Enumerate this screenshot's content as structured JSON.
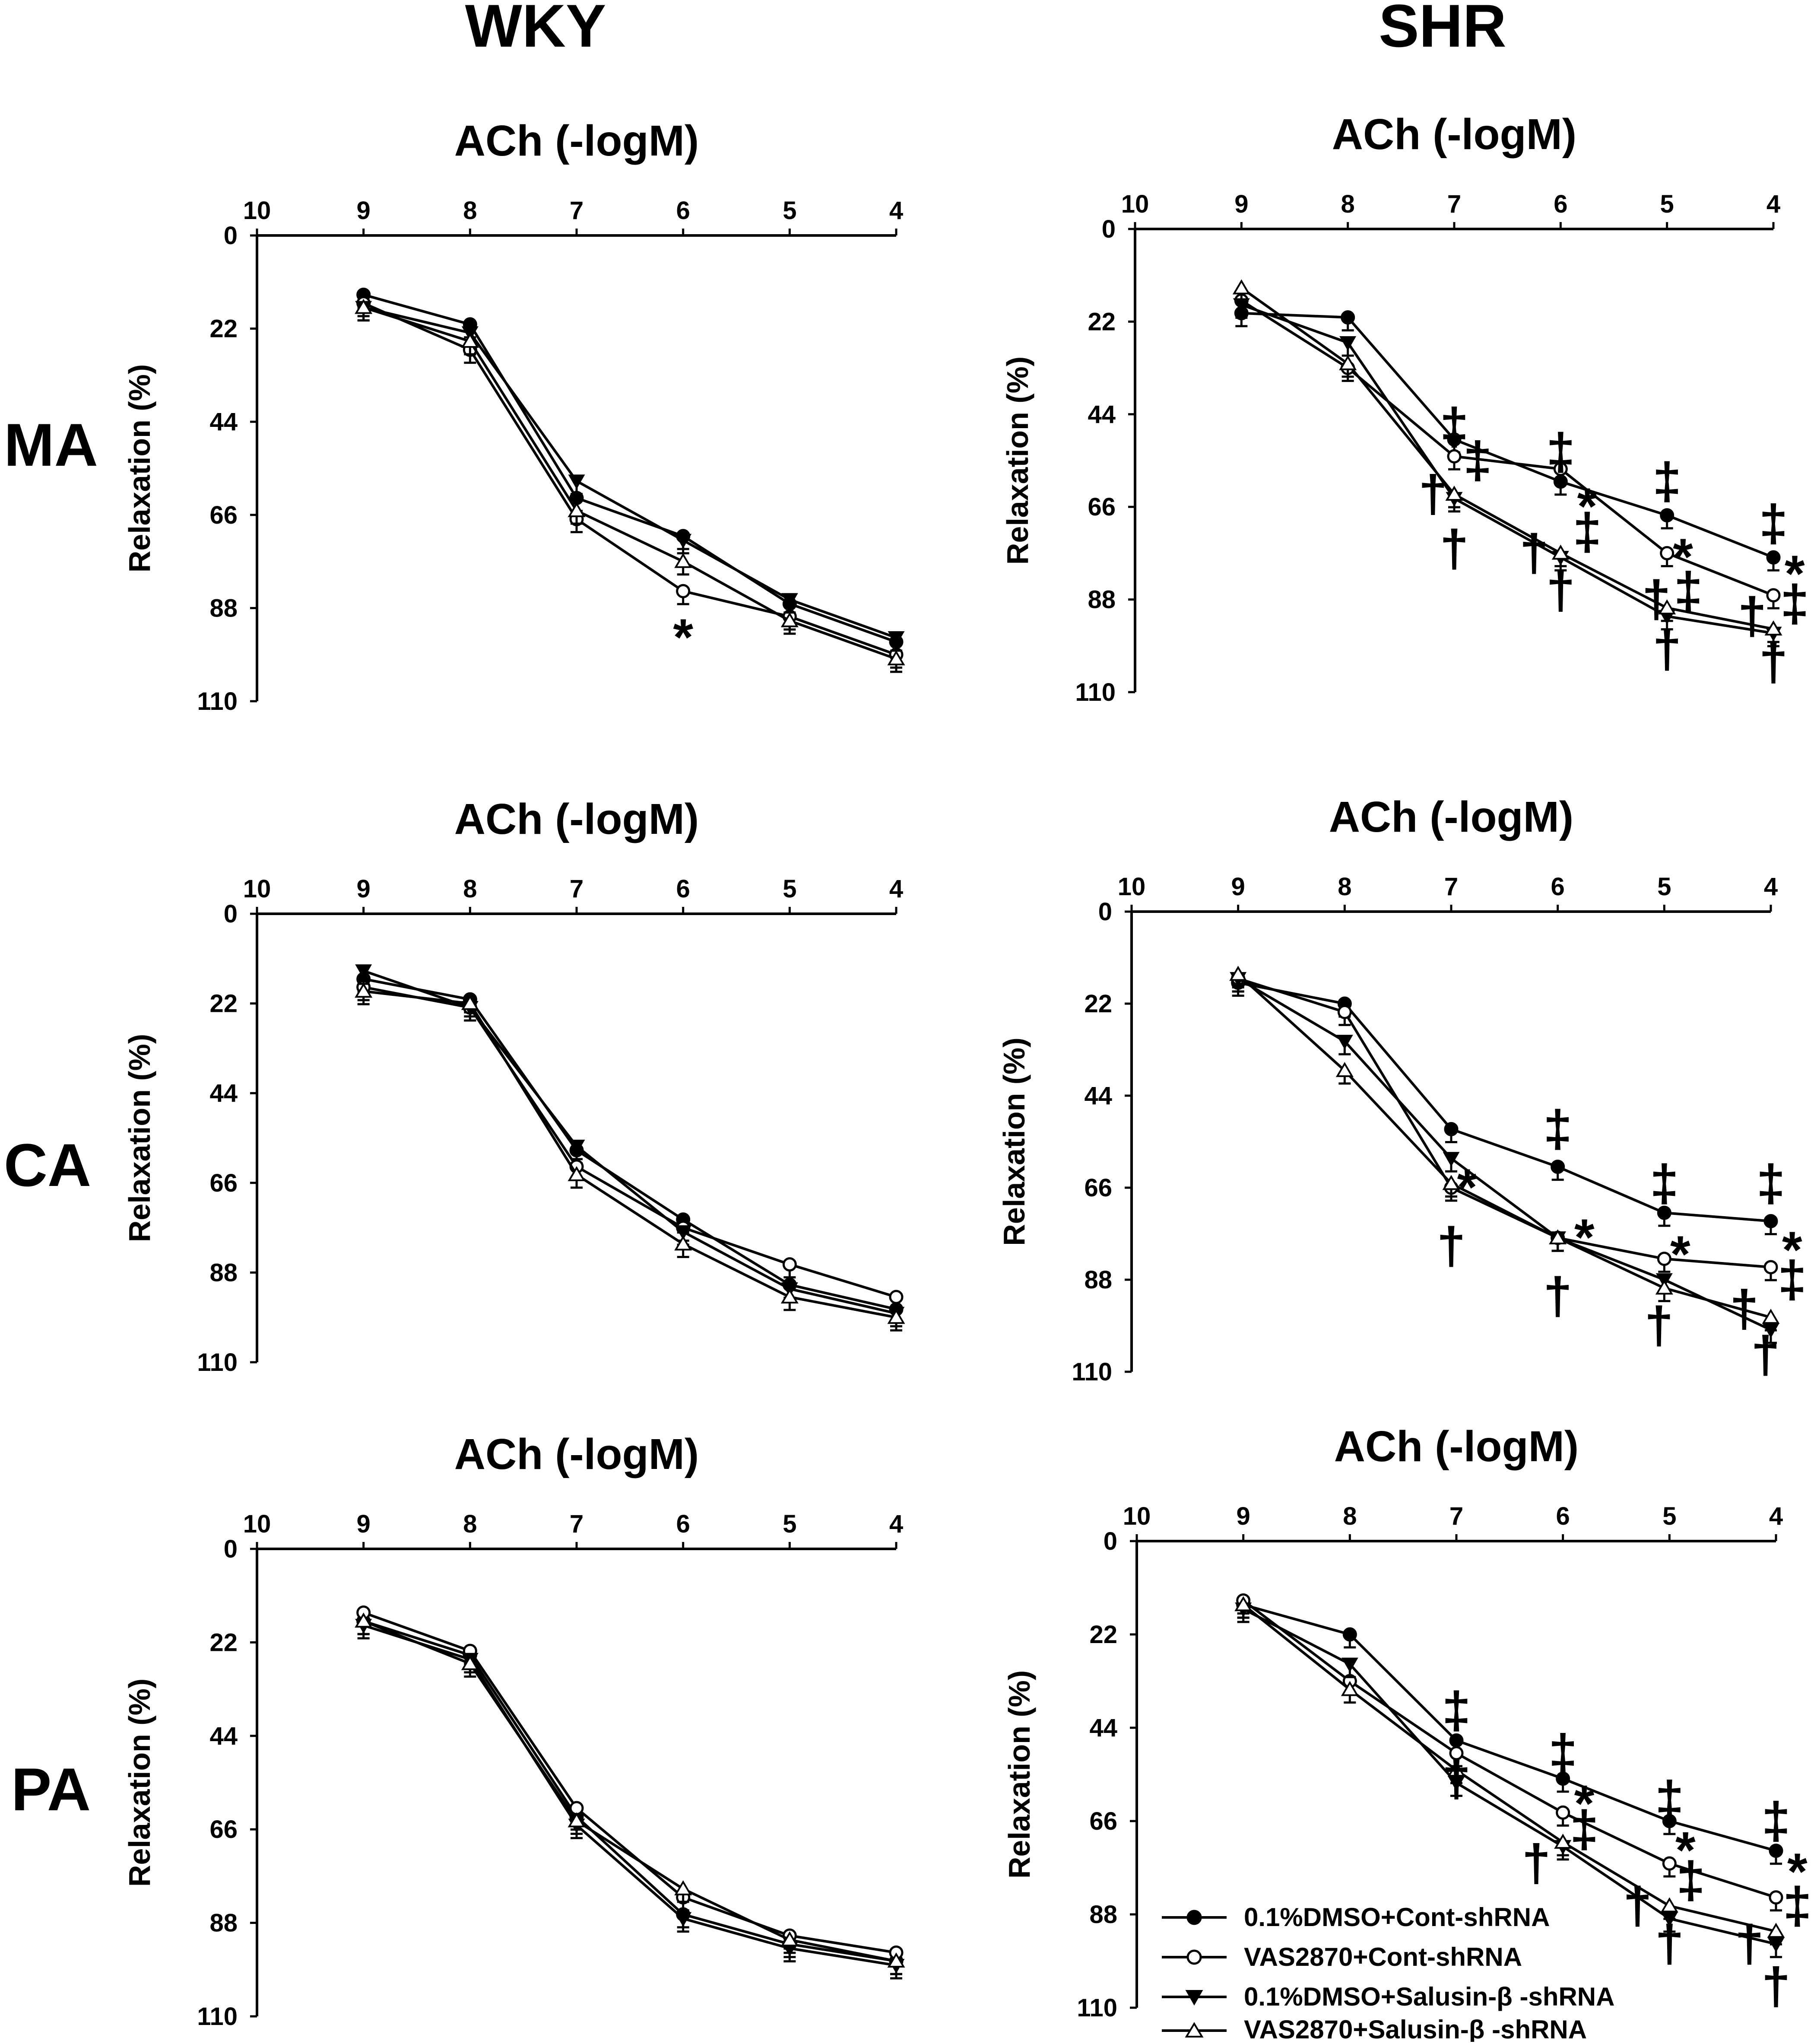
{
  "column_titles": [
    "WKY",
    "SHR"
  ],
  "row_labels": [
    "MA",
    "CA",
    "PA"
  ],
  "legend": {
    "entries": [
      {
        "label": "0.1%DMSO+Cont-shRNA",
        "marker": "filled-circle"
      },
      {
        "label": "VAS2870+Cont-shRNA",
        "marker": "open-circle"
      },
      {
        "label": "0.1%DMSO+Salusin-β -shRNA",
        "marker": "filled-triangle-down"
      },
      {
        "label": "VAS2870+Salusin-β -shRNA",
        "marker": "open-triangle-up"
      }
    ]
  },
  "chart_data": [
    {
      "id": "wky-ma",
      "type": "line",
      "title": "ACh  (-logM)",
      "xlabel": "ACh  (-logM)",
      "ylabel": "Relaxation (%)",
      "x": [
        9,
        8,
        7,
        6,
        5,
        4
      ],
      "xticks": [
        10,
        9,
        8,
        7,
        6,
        5,
        4
      ],
      "xlim": [
        10,
        4
      ],
      "yticks": [
        0,
        22,
        44,
        66,
        88,
        110
      ],
      "ylim": [
        0,
        110
      ],
      "series": [
        {
          "name": "0.1%DMSO+Cont-shRNA",
          "values": [
            14,
            21,
            62,
            71,
            87,
            96
          ]
        },
        {
          "name": "VAS2870+Cont-shRNA",
          "values": [
            16,
            27,
            67,
            84,
            90,
            99
          ]
        },
        {
          "name": "0.1%DMSO+Salusin-β -shRNA",
          "values": [
            17,
            23,
            58,
            72,
            86,
            95
          ]
        },
        {
          "name": "VAS2870+Salusin-β -shRNA",
          "values": [
            17,
            25,
            65,
            77,
            91,
            100
          ]
        }
      ],
      "annotations": [
        {
          "text": "*",
          "x": 6,
          "y": 95
        }
      ]
    },
    {
      "id": "shr-ma",
      "type": "line",
      "title": "ACh  (-logM)",
      "xlabel": "ACh  (-logM)",
      "ylabel": "Relaxation (%)",
      "x": [
        9,
        8,
        7,
        6,
        5,
        4
      ],
      "xticks": [
        10,
        9,
        8,
        7,
        6,
        5,
        4
      ],
      "xlim": [
        10,
        4
      ],
      "yticks": [
        0,
        22,
        44,
        66,
        88,
        110
      ],
      "ylim": [
        0,
        110
      ],
      "series": [
        {
          "name": "0.1%DMSO+Cont-shRNA",
          "values": [
            20,
            21,
            50,
            60,
            68,
            78
          ]
        },
        {
          "name": "VAS2870+Cont-shRNA",
          "values": [
            17,
            33,
            54,
            57,
            77,
            87
          ]
        },
        {
          "name": "0.1%DMSO+Salusin-β -shRNA",
          "values": [
            18,
            27,
            64,
            78,
            92,
            96
          ]
        },
        {
          "name": "VAS2870+Salusin-β -shRNA",
          "values": [
            14,
            32,
            63,
            77,
            90,
            95
          ]
        }
      ],
      "annotations": [
        {
          "text": "‡",
          "x": 7,
          "y": 47
        },
        {
          "text": "‡",
          "x": 6.78,
          "y": 55
        },
        {
          "text": "†",
          "x": 7.2,
          "y": 63
        },
        {
          "text": "†",
          "x": 7,
          "y": 76
        },
        {
          "text": "‡",
          "x": 6,
          "y": 53
        },
        {
          "text": "*",
          "x": 5.75,
          "y": 66
        },
        {
          "text": "‡",
          "x": 5.75,
          "y": 72
        },
        {
          "text": "†",
          "x": 6.25,
          "y": 77
        },
        {
          "text": "†",
          "x": 6,
          "y": 86
        },
        {
          "text": "‡",
          "x": 5,
          "y": 60
        },
        {
          "text": "*",
          "x": 4.85,
          "y": 78
        },
        {
          "text": "‡",
          "x": 4.8,
          "y": 86
        },
        {
          "text": "†",
          "x": 5.1,
          "y": 88
        },
        {
          "text": "†",
          "x": 5,
          "y": 100
        },
        {
          "text": "‡",
          "x": 4,
          "y": 70
        },
        {
          "text": "*",
          "x": 3.8,
          "y": 82
        },
        {
          "text": "‡",
          "x": 3.8,
          "y": 89
        },
        {
          "text": "†",
          "x": 4.2,
          "y": 92
        },
        {
          "text": "†",
          "x": 4,
          "y": 103
        }
      ]
    },
    {
      "id": "wky-ca",
      "type": "line",
      "title": "ACh  (-logM)",
      "xlabel": "ACh  (-logM)",
      "ylabel": "Relaxation (%)",
      "x": [
        9,
        8,
        7,
        6,
        5,
        4
      ],
      "xticks": [
        10,
        9,
        8,
        7,
        6,
        5,
        4
      ],
      "xlim": [
        10,
        4
      ],
      "yticks": [
        0,
        22,
        44,
        66,
        88,
        110
      ],
      "ylim": [
        0,
        110
      ],
      "series": [
        {
          "name": "0.1%DMSO+Cont-shRNA",
          "values": [
            16,
            21,
            58,
            75,
            91,
            97
          ]
        },
        {
          "name": "VAS2870+Cont-shRNA",
          "values": [
            18,
            23,
            62,
            77,
            86,
            94
          ]
        },
        {
          "name": "0.1%DMSO+Salusin-β -shRNA",
          "values": [
            14,
            23,
            57,
            78,
            92,
            98
          ]
        },
        {
          "name": "VAS2870+Salusin-β -shRNA",
          "values": [
            19,
            22,
            64,
            81,
            94,
            99
          ]
        }
      ]
    },
    {
      "id": "shr-ca",
      "type": "line",
      "title": "ACh  (-logM)",
      "xlabel": "ACh  (-logM)",
      "ylabel": "Relaxation (%)",
      "x": [
        9,
        8,
        7,
        6,
        5,
        4
      ],
      "xticks": [
        10,
        9,
        8,
        7,
        6,
        5,
        4
      ],
      "xlim": [
        10,
        4
      ],
      "yticks": [
        0,
        22,
        44,
        66,
        88,
        110
      ],
      "ylim": [
        0,
        110
      ],
      "series": [
        {
          "name": "0.1%DMSO+Cont-shRNA",
          "values": [
            17,
            22,
            52,
            61,
            72,
            74
          ]
        },
        {
          "name": "VAS2870+Cont-shRNA",
          "values": [
            16,
            24,
            66,
            78,
            83,
            85
          ]
        },
        {
          "name": "0.1%DMSO+Salusin-β -shRNA",
          "values": [
            16,
            31,
            59,
            78,
            88,
            100
          ]
        },
        {
          "name": "VAS2870+Salusin-β -shRNA",
          "values": [
            15,
            38,
            65,
            78,
            90,
            97
          ]
        }
      ],
      "annotations": [
        {
          "text": "*",
          "x": 6.85,
          "y": 66
        },
        {
          "text": "†",
          "x": 7,
          "y": 80
        },
        {
          "text": "‡",
          "x": 6,
          "y": 52
        },
        {
          "text": "*",
          "x": 5.75,
          "y": 78
        },
        {
          "text": "†",
          "x": 6,
          "y": 92
        },
        {
          "text": "‡",
          "x": 5,
          "y": 65
        },
        {
          "text": "*",
          "x": 4.85,
          "y": 82
        },
        {
          "text": "†",
          "x": 5.05,
          "y": 99
        },
        {
          "text": "‡",
          "x": 4,
          "y": 65
        },
        {
          "text": "*",
          "x": 3.8,
          "y": 81
        },
        {
          "text": "‡",
          "x": 3.8,
          "y": 88
        },
        {
          "text": "†",
          "x": 4.25,
          "y": 95
        },
        {
          "text": "†",
          "x": 4.05,
          "y": 106
        }
      ]
    },
    {
      "id": "wky-pa",
      "type": "line",
      "title": "ACh  (-logM)",
      "xlabel": "ACh  (-logM)",
      "ylabel": "Relaxation (%)",
      "x": [
        9,
        8,
        7,
        6,
        5,
        4
      ],
      "xticks": [
        10,
        9,
        8,
        7,
        6,
        5,
        4
      ],
      "xlim": [
        10,
        4
      ],
      "yticks": [
        0,
        22,
        44,
        66,
        88,
        110
      ],
      "ylim": [
        0,
        110
      ],
      "series": [
        {
          "name": "0.1%DMSO+Cont-shRNA",
          "values": [
            17,
            25,
            63,
            86,
            93,
            97
          ]
        },
        {
          "name": "VAS2870+Cont-shRNA",
          "values": [
            15,
            24,
            61,
            82,
            91,
            95
          ]
        },
        {
          "name": "0.1%DMSO+Salusin-β -shRNA",
          "values": [
            18,
            26,
            65,
            87,
            94,
            98
          ]
        },
        {
          "name": "VAS2870+Salusin-β -shRNA",
          "values": [
            17,
            27,
            64,
            80,
            92,
            97
          ]
        }
      ]
    },
    {
      "id": "shr-pa",
      "type": "line",
      "title": "ACh  (-logM)",
      "xlabel": "ACh  (-logM)",
      "ylabel": "Relaxation (%)",
      "x": [
        9,
        8,
        7,
        6,
        5,
        4
      ],
      "xticks": [
        10,
        9,
        8,
        7,
        6,
        5,
        4
      ],
      "xlim": [
        10,
        4
      ],
      "yticks": [
        0,
        22,
        44,
        66,
        88,
        110
      ],
      "ylim": [
        0,
        110
      ],
      "series": [
        {
          "name": "0.1%DMSO+Cont-shRNA",
          "values": [
            15,
            22,
            47,
            56,
            66,
            73
          ]
        },
        {
          "name": "VAS2870+Cont-shRNA",
          "values": [
            14,
            33,
            50,
            64,
            76,
            84
          ]
        },
        {
          "name": "0.1%DMSO+Salusin-β -shRNA",
          "values": [
            16,
            29,
            57,
            72,
            89,
            95
          ]
        },
        {
          "name": "VAS2870+Salusin-β -shRNA",
          "values": [
            15,
            35,
            54,
            71,
            86,
            92
          ]
        }
      ],
      "annotations": [
        {
          "text": "‡",
          "x": 7,
          "y": 40
        },
        {
          "text": "†",
          "x": 7,
          "y": 56
        },
        {
          "text": "‡",
          "x": 6,
          "y": 50
        },
        {
          "text": "*",
          "x": 5.8,
          "y": 62
        },
        {
          "text": "‡",
          "x": 5.8,
          "y": 68
        },
        {
          "text": "†",
          "x": 6.25,
          "y": 76
        },
        {
          "text": "‡",
          "x": 5,
          "y": 61
        },
        {
          "text": "*",
          "x": 4.85,
          "y": 73
        },
        {
          "text": "‡",
          "x": 4.8,
          "y": 80
        },
        {
          "text": "†",
          "x": 5.3,
          "y": 86
        },
        {
          "text": "†",
          "x": 5,
          "y": 95
        },
        {
          "text": "‡",
          "x": 4,
          "y": 66
        },
        {
          "text": "*",
          "x": 3.8,
          "y": 78
        },
        {
          "text": "‡",
          "x": 3.8,
          "y": 86
        },
        {
          "text": "†",
          "x": 4.25,
          "y": 95
        },
        {
          "text": "†",
          "x": 4,
          "y": 105
        }
      ]
    }
  ]
}
